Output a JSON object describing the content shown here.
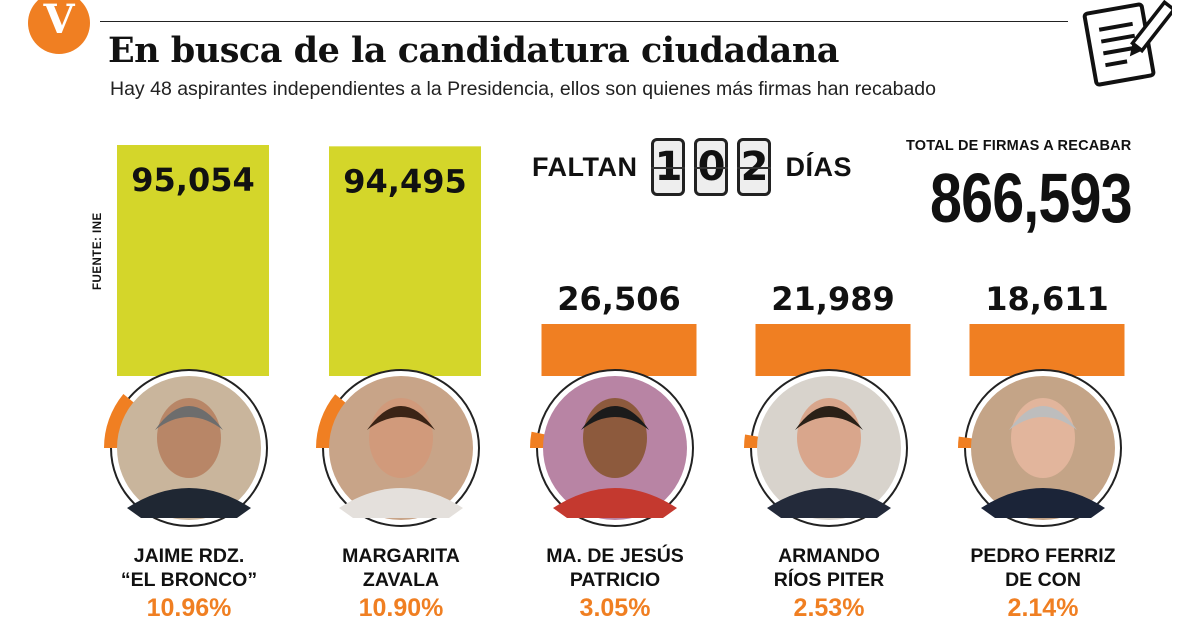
{
  "header": {
    "logo_letter": "V",
    "title": "En busca de la candidatura ciudadana",
    "subtitle": "Hay 48 aspirantes independientes a la Presidencia, ellos son quienes más firmas han recabado",
    "document_icon": "document-pencil-icon"
  },
  "source": "FUENTE: INE",
  "countdown": {
    "prefix": "FALTAN",
    "digits": [
      "1",
      "0",
      "2"
    ],
    "suffix": "DÍAS"
  },
  "total": {
    "label": "TOTAL DE FIRMAS A RECABAR",
    "value": "866,593"
  },
  "colors": {
    "lime": "#d4d62a",
    "orange": "#f07f22",
    "ring": "#222222"
  },
  "chart_data": {
    "type": "bar",
    "categories": [
      "JAIME RDZ. “EL BRONCO”",
      "MARGARITA ZAVALA",
      "MA. DE JESÚS PATRICIO",
      "ARMANDO RÍOS PITER",
      "PEDRO FERRIZ DE CON"
    ],
    "values": [
      95054,
      94495,
      26506,
      21989,
      18611
    ],
    "value_labels": [
      "95,054",
      "94,495",
      "26,506",
      "21,989",
      "18,611"
    ],
    "percentages": [
      10.96,
      10.9,
      3.05,
      2.53,
      2.14
    ],
    "percent_labels": [
      "10.96%",
      "10.90%",
      "3.05%",
      "2.53%",
      "2.14%"
    ],
    "total": 866593,
    "bar_colors": [
      "#d4d62a",
      "#d4d62a",
      "#f07f22",
      "#f07f22",
      "#f07f22"
    ]
  },
  "candidates": [
    {
      "name_line1": "JAIME RDZ.",
      "name_line2": "“EL BRONCO”",
      "pct": "10.96%",
      "photo": "portrait-man-grey-hair"
    },
    {
      "name_line1": "MARGARITA",
      "name_line2": "ZAVALA",
      "pct": "10.90%",
      "photo": "portrait-woman-brown-hair"
    },
    {
      "name_line1": "MA. DE JESÚS",
      "name_line2": "PATRICIO",
      "pct": "3.05%",
      "photo": "portrait-woman-embroidered-blouse"
    },
    {
      "name_line1": "ARMANDO",
      "name_line2": "RÍOS PITER",
      "pct": "2.53%",
      "photo": "portrait-man-glasses"
    },
    {
      "name_line1": "PEDRO FERRIZ",
      "name_line2": "DE CON",
      "pct": "2.14%",
      "photo": "portrait-man-bald-suit"
    }
  ]
}
